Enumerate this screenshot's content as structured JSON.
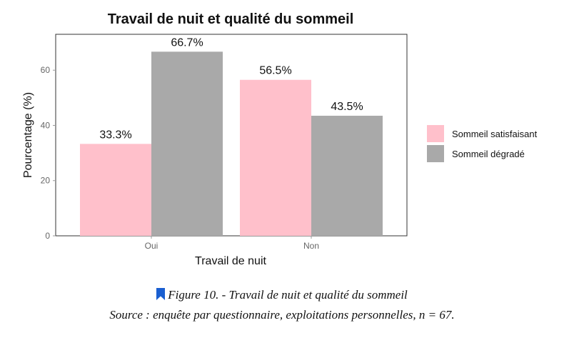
{
  "chart_data": {
    "type": "bar",
    "title": "Travail de nuit et qualité du sommeil",
    "xlabel": "Travail de nuit",
    "ylabel": "Pourcentage (%)",
    "categories": [
      "Oui",
      "Non"
    ],
    "series": [
      {
        "name": "Sommeil satisfaisant",
        "values": [
          33.3,
          56.5
        ],
        "labels": [
          "33.3%",
          "56.5%"
        ],
        "color": "#ffc0cb"
      },
      {
        "name": "Sommeil dégradé",
        "values": [
          66.7,
          43.5
        ],
        "labels": [
          "66.7%",
          "43.5%"
        ],
        "color": "#a9a9a9"
      }
    ],
    "ylim": [
      0,
      73
    ],
    "yticks": [
      0,
      20,
      40,
      60
    ],
    "legend": "right",
    "grid": false
  },
  "caption": {
    "figure": "Figure 10. - Travail de nuit et qualité du sommeil",
    "source": "Source : enquête par questionnaire, exploitations personnelles, n = 67."
  },
  "icons": {
    "caption_icon": "bookmark-icon"
  }
}
